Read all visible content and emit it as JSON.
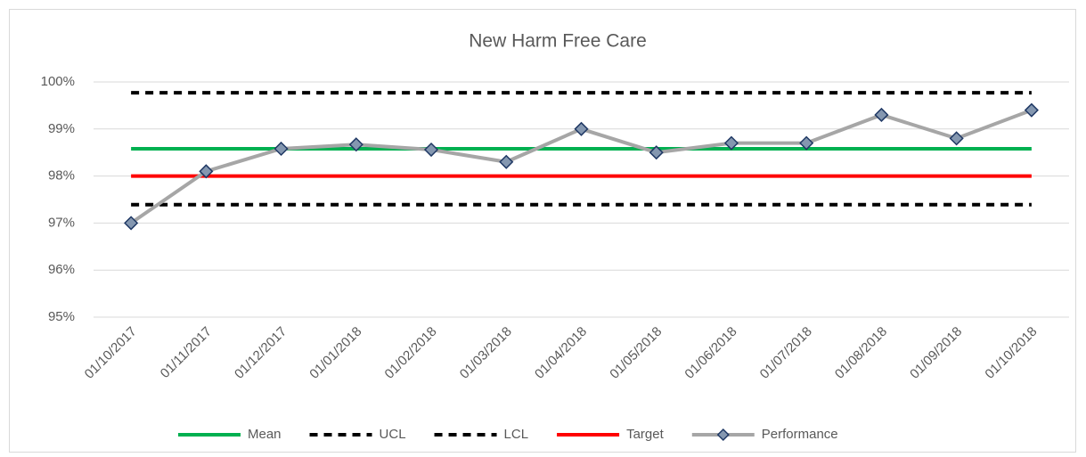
{
  "chart_data": {
    "type": "line",
    "title": "New Harm Free Care",
    "categories": [
      "01/10/2017",
      "01/11/2017",
      "01/12/2017",
      "01/01/2018",
      "01/02/2018",
      "01/03/2018",
      "01/04/2018",
      "01/05/2018",
      "01/06/2018",
      "01/07/2018",
      "01/08/2018",
      "01/09/2018",
      "01/10/2018"
    ],
    "series": [
      {
        "name": "Mean",
        "color": "#00b050",
        "dash": false,
        "values": [
          98.58,
          98.58,
          98.58,
          98.58,
          98.58,
          98.58,
          98.58,
          98.58,
          98.58,
          98.58,
          98.58,
          98.58,
          98.58
        ]
      },
      {
        "name": "UCL",
        "color": "#000000",
        "dash": true,
        "values": [
          99.77,
          99.77,
          99.77,
          99.77,
          99.77,
          99.77,
          99.77,
          99.77,
          99.77,
          99.77,
          99.77,
          99.77,
          99.77
        ]
      },
      {
        "name": "LCL",
        "color": "#000000",
        "dash": true,
        "values": [
          97.39,
          97.39,
          97.39,
          97.39,
          97.39,
          97.39,
          97.39,
          97.39,
          97.39,
          97.39,
          97.39,
          97.39,
          97.39
        ]
      },
      {
        "name": "Target",
        "color": "#ff0000",
        "dash": false,
        "values": [
          98,
          98,
          98,
          98,
          98,
          98,
          98,
          98,
          98,
          98,
          98,
          98,
          98
        ]
      },
      {
        "name": "Performance",
        "color": "#a6a6a6",
        "dash": false,
        "marker": "diamond",
        "marker_fill": "#8497b0",
        "marker_stroke": "#1f3864",
        "values": [
          97.0,
          98.1,
          98.58,
          98.67,
          98.56,
          98.3,
          99.0,
          98.5,
          98.7,
          98.7,
          99.3,
          98.8,
          99.4
        ]
      }
    ],
    "ylim": [
      95,
      100
    ],
    "yticks": [
      {
        "value": 95,
        "label": "95%"
      },
      {
        "value": 96,
        "label": "96%"
      },
      {
        "value": 97,
        "label": "97%"
      },
      {
        "value": 98,
        "label": "98%"
      },
      {
        "value": 99,
        "label": "99%"
      },
      {
        "value": 100,
        "label": "100%"
      }
    ],
    "grid": true,
    "legend": "bottom"
  }
}
